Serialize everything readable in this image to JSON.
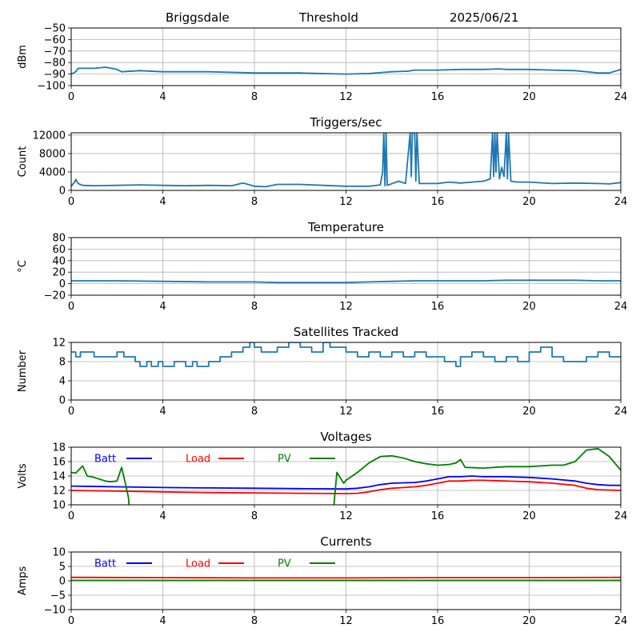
{
  "header": {
    "station": "Briggsdale",
    "label": "Threshold",
    "date": "2025/06/21"
  },
  "colors": {
    "series": "#1f77b4",
    "batt": "#0000ff",
    "load": "#ff0000",
    "pv": "#008000",
    "grid": "#b0b0b0"
  },
  "chart_data": [
    {
      "type": "line",
      "title": "",
      "xlabel": "",
      "ylabel": "dBm",
      "xlim": [
        0,
        24
      ],
      "ylim": [
        -100,
        -50
      ],
      "xticks": [
        0,
        4,
        8,
        12,
        16,
        20,
        24
      ],
      "yticks": [
        -100,
        -90,
        -80,
        -70,
        -60,
        -50
      ],
      "grid": true,
      "series": [
        {
          "color": "#1f77b4",
          "x": [
            0,
            0.2,
            0.3,
            1.0,
            1.5,
            2.0,
            2.2,
            3.0,
            4.0,
            6.0,
            8.0,
            10.0,
            12.0,
            13.0,
            14.0,
            14.7,
            15.0,
            16.0,
            17.0,
            18.0,
            18.7,
            19.0,
            20.0,
            21.0,
            22.0,
            22.5,
            23.0,
            23.5,
            24.0
          ],
          "y": [
            -90,
            -88,
            -85,
            -85,
            -84,
            -86,
            -88,
            -87,
            -88,
            -88,
            -89,
            -89,
            -90,
            -89.5,
            -88,
            -87.5,
            -86.5,
            -86.5,
            -86,
            -86,
            -85.5,
            -86,
            -86,
            -86.5,
            -87,
            -88,
            -89,
            -89,
            -86
          ]
        }
      ]
    },
    {
      "type": "line",
      "title": "Triggers/sec",
      "xlabel": "",
      "ylabel": "Count",
      "xlim": [
        0,
        24
      ],
      "ylim": [
        0,
        12500
      ],
      "xticks": [
        0,
        4,
        8,
        12,
        16,
        20,
        24
      ],
      "yticks": [
        0,
        4000,
        8000,
        12000
      ],
      "grid": true,
      "series": [
        {
          "color": "#1f77b4",
          "x": [
            0,
            0.15,
            0.2,
            0.3,
            0.5,
            1,
            2,
            3,
            4,
            5,
            6,
            7,
            7.5,
            8,
            8.5,
            9,
            10,
            11,
            12,
            12.5,
            13,
            13.5,
            13.6,
            13.65,
            13.7,
            13.75,
            13.8,
            14.3,
            14.6,
            14.8,
            14.85,
            14.9,
            15.0,
            15.05,
            15.1,
            15.2,
            15.5,
            16,
            16.5,
            17,
            17.5,
            18,
            18.3,
            18.4,
            18.45,
            18.5,
            18.55,
            18.6,
            18.7,
            18.8,
            18.9,
            19.0,
            19.05,
            19.1,
            19.2,
            19.5,
            20,
            21,
            22,
            23,
            23.5,
            24
          ],
          "y": [
            900,
            1800,
            2400,
            1500,
            1100,
            1000,
            1100,
            1200,
            1100,
            1000,
            1100,
            1000,
            1600,
            900,
            800,
            1300,
            1300,
            1100,
            900,
            900,
            900,
            1200,
            4000,
            12500,
            1000,
            12500,
            1100,
            2000,
            1500,
            12500,
            3000,
            12500,
            12500,
            2000,
            12500,
            1500,
            1500,
            1500,
            1800,
            1600,
            1800,
            2000,
            2500,
            12500,
            3000,
            12500,
            4000,
            12500,
            2500,
            5000,
            3000,
            12500,
            2500,
            12500,
            2000,
            1800,
            1800,
            1500,
            1600,
            1500,
            1400,
            1700
          ]
        }
      ]
    },
    {
      "type": "line",
      "title": "Temperature",
      "xlabel": "",
      "ylabel": "°C",
      "xlim": [
        0,
        24
      ],
      "ylim": [
        -20,
        80
      ],
      "xticks": [
        0,
        4,
        8,
        12,
        16,
        20,
        24
      ],
      "yticks": [
        -20,
        0,
        20,
        40,
        60,
        80
      ],
      "grid": true,
      "series": [
        {
          "color": "#1f77b4",
          "x": [
            0,
            2,
            4,
            6,
            8,
            9,
            10,
            11,
            12,
            13,
            14,
            15,
            16,
            17,
            18,
            19,
            20,
            21,
            22,
            23,
            24
          ],
          "y": [
            5,
            5,
            4,
            3,
            3,
            2,
            2,
            2,
            2,
            3,
            4,
            5,
            5,
            5,
            5,
            6,
            6,
            6,
            6,
            5,
            5
          ]
        }
      ]
    },
    {
      "type": "line",
      "title": "Satellites Tracked",
      "xlabel": "",
      "ylabel": "Number",
      "xlim": [
        0,
        24
      ],
      "ylim": [
        0,
        12
      ],
      "xticks": [
        0,
        4,
        8,
        12,
        16,
        20,
        24
      ],
      "yticks": [
        0,
        4,
        8,
        12
      ],
      "grid": true,
      "series": [
        {
          "color": "#1f77b4",
          "step": true,
          "x": [
            0,
            0.2,
            0.4,
            1.0,
            2.0,
            2.3,
            2.8,
            3.0,
            3.3,
            3.5,
            3.8,
            4.0,
            4.5,
            5.0,
            5.3,
            5.5,
            6.0,
            6.5,
            7.0,
            7.5,
            7.8,
            8.0,
            8.3,
            9.0,
            9.5,
            10.0,
            10.5,
            11.0,
            11.3,
            12.0,
            12.5,
            13.0,
            13.5,
            14.0,
            14.5,
            15.0,
            15.5,
            16.0,
            16.3,
            16.8,
            17.0,
            17.5,
            18.0,
            18.5,
            19.0,
            19.5,
            20.0,
            20.5,
            21.0,
            21.5,
            22.0,
            22.5,
            23.0,
            23.5,
            24
          ],
          "y": [
            10,
            9,
            10,
            9,
            10,
            9,
            8,
            7,
            8,
            7,
            8,
            7,
            8,
            7,
            8,
            7,
            8,
            9,
            10,
            11,
            12,
            11,
            10,
            11,
            12,
            11,
            10,
            12,
            11,
            10,
            9,
            10,
            9,
            10,
            9,
            10,
            9,
            9,
            8,
            7,
            9,
            10,
            9,
            8,
            9,
            8,
            10,
            11,
            9,
            8,
            8,
            9,
            10,
            9,
            9
          ]
        }
      ]
    },
    {
      "type": "line",
      "title": "Voltages",
      "xlabel": "",
      "ylabel": "Volts",
      "xlim": [
        0,
        24
      ],
      "ylim": [
        10,
        18
      ],
      "xticks": [
        0,
        4,
        8,
        12,
        16,
        20,
        24
      ],
      "yticks": [
        10,
        12,
        14,
        16,
        18
      ],
      "grid": true,
      "legend": "top-left",
      "series": [
        {
          "name": "Batt",
          "color": "#0000ff",
          "x": [
            0,
            2,
            4,
            6,
            8,
            10,
            12,
            12.5,
            13,
            13.5,
            14,
            15,
            15.5,
            16,
            16.5,
            17,
            17.5,
            18,
            19,
            20,
            21,
            22,
            22.5,
            23,
            23.5,
            24
          ],
          "y": [
            12.6,
            12.5,
            12.4,
            12.35,
            12.3,
            12.25,
            12.2,
            12.3,
            12.5,
            12.8,
            13.0,
            13.1,
            13.3,
            13.6,
            13.9,
            13.9,
            14.0,
            13.9,
            13.9,
            13.8,
            13.6,
            13.3,
            13.0,
            12.8,
            12.7,
            12.7
          ]
        },
        {
          "name": "Load",
          "color": "#ff0000",
          "x": [
            0,
            2,
            4,
            6,
            8,
            10,
            12,
            12.5,
            13,
            13.5,
            14,
            15,
            15.5,
            16,
            16.5,
            17,
            17.5,
            18,
            19,
            20,
            21,
            22,
            22.5,
            23,
            24
          ],
          "y": [
            12.0,
            11.9,
            11.8,
            11.7,
            11.65,
            11.6,
            11.55,
            11.6,
            11.8,
            12.1,
            12.3,
            12.5,
            12.7,
            13.0,
            13.3,
            13.3,
            13.4,
            13.4,
            13.3,
            13.2,
            13.0,
            12.7,
            12.3,
            12.1,
            12.0
          ]
        },
        {
          "name": "PV",
          "color": "#008000",
          "x": [
            0,
            0.2,
            0.5,
            0.7,
            1.0,
            1.5,
            1.7,
            2.0,
            2.2,
            2.4,
            2.5,
            2.55,
            11.45,
            11.5,
            11.6,
            11.9,
            12.0,
            12.5,
            13.0,
            13.5,
            14.0,
            14.5,
            15.0,
            15.5,
            16.0,
            16.5,
            16.8,
            17.0,
            17.2,
            18.0,
            19.0,
            20.0,
            21.0,
            21.5,
            22.0,
            22.5,
            23.0,
            23.5,
            24
          ],
          "y": [
            14.5,
            14.4,
            15.4,
            14.0,
            13.8,
            13.3,
            13.2,
            13.3,
            15.2,
            12.5,
            11.0,
            9.0,
            9.0,
            11.0,
            14.5,
            13.0,
            13.4,
            14.5,
            15.8,
            16.7,
            16.8,
            16.5,
            16.0,
            15.7,
            15.5,
            15.6,
            15.8,
            16.3,
            15.2,
            15.1,
            15.3,
            15.3,
            15.5,
            15.5,
            16.0,
            17.6,
            17.8,
            16.7,
            14.8
          ]
        }
      ]
    },
    {
      "type": "line",
      "title": "Currents",
      "xlabel": "",
      "ylabel": "Amps",
      "xlim": [
        0,
        24
      ],
      "ylim": [
        -10,
        10
      ],
      "xticks": [
        0,
        4,
        8,
        12,
        16,
        20,
        24
      ],
      "yticks": [
        -10,
        -5,
        0,
        5,
        10
      ],
      "grid": true,
      "legend": "top-left",
      "series": [
        {
          "name": "Batt",
          "color": "#0000ff",
          "x": [
            0,
            24
          ],
          "y": [
            0.1,
            0.1
          ]
        },
        {
          "name": "Load",
          "color": "#ff0000",
          "x": [
            0,
            4,
            8,
            12,
            16,
            20,
            24
          ],
          "y": [
            1.2,
            1.1,
            1.0,
            1.0,
            1.1,
            1.1,
            1.2
          ]
        },
        {
          "name": "PV",
          "color": "#008000",
          "x": [
            0,
            24
          ],
          "y": [
            0.1,
            0.1
          ]
        }
      ]
    }
  ]
}
